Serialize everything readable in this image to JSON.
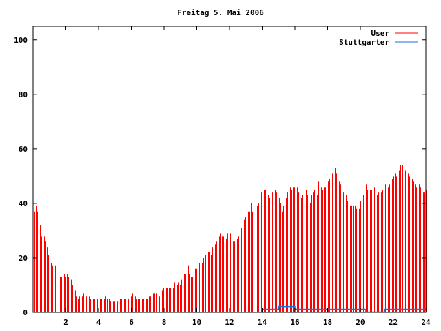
{
  "chart_data": {
    "type": "bar",
    "title": "Freitag 5. Mai 2006",
    "xlabel": "",
    "ylabel": "",
    "xlim": [
      0,
      24
    ],
    "ylim": [
      0,
      105
    ],
    "xticks": [
      2,
      4,
      6,
      8,
      10,
      12,
      14,
      16,
      18,
      20,
      22,
      24
    ],
    "yticks": [
      0,
      20,
      40,
      60,
      80,
      100
    ],
    "legend_position": "top-right",
    "series": [
      {
        "name": "User",
        "style": "impulses",
        "color": "#ff0000",
        "values": [
          37,
          39,
          37,
          36,
          32,
          28,
          27,
          28,
          26,
          24,
          21,
          20,
          18,
          17,
          17,
          17,
          14,
          14,
          13,
          13,
          15,
          14,
          13,
          14,
          13,
          13,
          12,
          10,
          8,
          8,
          6,
          5,
          6,
          6,
          6,
          7,
          6,
          6,
          6,
          6,
          5,
          5,
          5,
          5,
          5,
          5,
          5,
          5,
          5,
          5,
          5,
          6,
          5,
          5,
          4,
          4,
          4,
          4,
          4,
          4,
          5,
          5,
          5,
          5,
          5,
          5,
          5,
          5,
          5,
          6,
          7,
          7,
          6,
          5,
          5,
          5,
          5,
          5,
          5,
          5,
          5,
          5,
          6,
          6,
          6,
          7,
          7,
          7,
          7,
          6,
          8,
          8,
          9,
          9,
          9,
          9,
          9,
          9,
          9,
          9,
          11,
          11,
          10,
          11,
          10,
          12,
          13,
          14,
          14,
          15,
          17,
          14,
          13,
          13,
          14,
          16,
          16,
          17,
          18,
          19,
          18,
          20,
          21,
          21,
          22,
          22,
          21,
          24,
          24,
          25,
          26,
          26,
          28,
          29,
          28,
          28,
          29,
          27,
          29,
          28,
          29,
          28,
          26,
          26,
          26,
          27,
          28,
          29,
          31,
          33,
          34,
          35,
          36,
          37,
          37,
          40,
          37,
          37,
          36,
          39,
          40,
          43,
          44,
          48,
          45,
          45,
          45,
          43,
          42,
          42,
          44,
          47,
          45,
          44,
          42,
          42,
          40,
          37,
          39,
          39,
          42,
          44,
          44,
          46,
          45,
          46,
          46,
          46,
          46,
          44,
          43,
          42,
          43,
          44,
          45,
          43,
          41,
          40,
          43,
          44,
          45,
          44,
          43,
          48,
          46,
          46,
          45,
          46,
          46,
          46,
          48,
          49,
          50,
          51,
          53,
          53,
          51,
          50,
          48,
          47,
          45,
          44,
          44,
          43,
          41,
          40,
          39,
          39,
          39,
          39,
          38,
          39,
          38,
          41,
          42,
          43,
          44,
          47,
          45,
          45,
          45,
          45,
          46,
          46,
          43,
          43,
          44,
          44,
          44,
          45,
          45,
          47,
          48,
          46,
          47,
          50,
          49,
          50,
          51,
          50,
          52,
          52,
          54,
          54,
          53,
          52,
          54,
          51,
          50,
          50,
          49,
          48,
          47,
          46,
          46,
          47,
          46,
          46,
          44,
          44,
          45
        ]
      },
      {
        "name": "Stuttgarter",
        "style": "steps",
        "color": "#1e6fe0",
        "points": [
          [
            14.0,
            0
          ],
          [
            14.0,
            1
          ],
          [
            15.0,
            1
          ],
          [
            15.0,
            2
          ],
          [
            16.0,
            2
          ],
          [
            16.0,
            1
          ],
          [
            20.3,
            1
          ],
          [
            20.3,
            0
          ],
          [
            21.5,
            0
          ],
          [
            21.5,
            1
          ],
          [
            24.0,
            1
          ]
        ]
      }
    ]
  }
}
